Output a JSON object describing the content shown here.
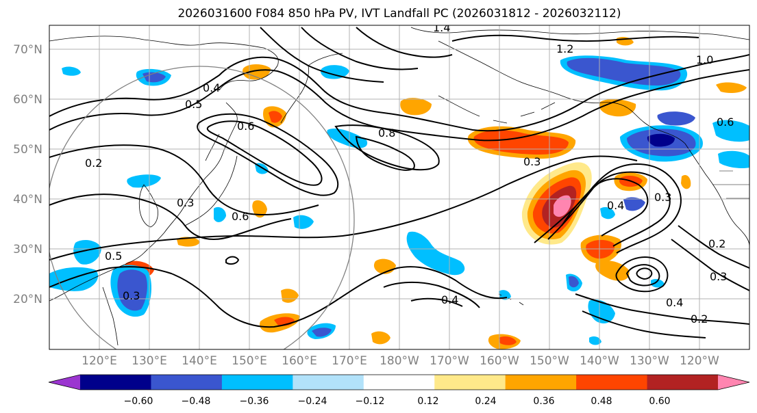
{
  "title": "2026031600 F084 850 hPa PV, IVT Landfall PC (2026031812 - 2026032112)",
  "lat_labels": [
    "70°N",
    "60°N",
    "50°N",
    "40°N",
    "30°N",
    "20°N"
  ],
  "lon_labels": [
    "120°E",
    "130°E",
    "140°E",
    "150°E",
    "160°E",
    "170°E",
    "180°W",
    "170°W",
    "160°W",
    "150°W",
    "140°W",
    "130°W",
    "120°W"
  ],
  "colorbar": {
    "ticks": [
      "−0.60",
      "−0.48",
      "−0.36",
      "−0.24",
      "−0.12",
      "0.12",
      "0.24",
      "0.36",
      "0.48",
      "0.60"
    ],
    "colors": [
      "#9b35d0",
      "#00008b",
      "#3a56cf",
      "#00bfff",
      "#b2e2fa",
      "#ffffff",
      "#ffe98a",
      "#ffa500",
      "#ff4500",
      "#b22222",
      "#ff85b0"
    ]
  },
  "contour_labels": [
    "1.4",
    "1.2",
    "1.0",
    "0.8",
    "0.6",
    "0.5",
    "0.4",
    "0.3",
    "0.2",
    "0.5",
    "0.6",
    "0.3",
    "0.4",
    "0.3",
    "0.2",
    "0.3",
    "0.4",
    "0.6",
    "0.3",
    "0.2",
    "0.4"
  ],
  "colors": {
    "text": "#000000",
    "axis_labels": "#7f7f7f",
    "grid": "#b0b0b0",
    "contour": "#000000",
    "circle": "#808080"
  }
}
